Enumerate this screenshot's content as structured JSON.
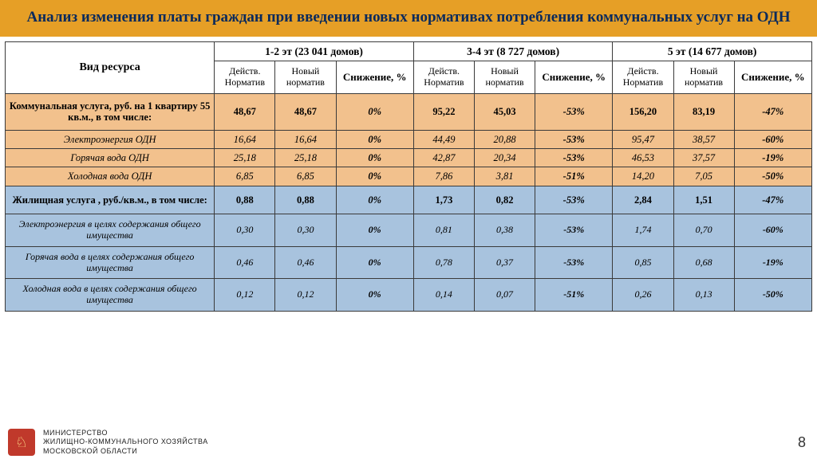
{
  "title": "Анализ изменения платы граждан при введении новых нормативах потребления коммунальных услуг на ОДН",
  "header": {
    "resource": "Вид ресурса",
    "groups": [
      "1-2 эт (23 041 домов)",
      "3-4 эт (8 727 домов)",
      "5 эт (14 677 домов)"
    ],
    "sub_current": "Действ. Норматив",
    "sub_new": "Новый норматив",
    "sub_reduction": "Снижение, %"
  },
  "rows": [
    {
      "cls": "sec-or-h",
      "label": "Коммунальная услуга, руб. на 1 квартиру 55 кв.м., в том числе:",
      "g1": {
        "c": "48,67",
        "n": "48,67",
        "r": "0%"
      },
      "g2": {
        "c": "95,22",
        "n": "45,03",
        "r": "-53%"
      },
      "g3": {
        "c": "156,20",
        "n": "83,19",
        "r": "-47%"
      }
    },
    {
      "cls": "sec-or",
      "label": "Электроэнергия ОДН",
      "g1": {
        "c": "16,64",
        "n": "16,64",
        "r": "0%"
      },
      "g2": {
        "c": "44,49",
        "n": "20,88",
        "r": "-53%"
      },
      "g3": {
        "c": "95,47",
        "n": "38,57",
        "r": "-60%"
      }
    },
    {
      "cls": "sec-or",
      "label": "Горячая вода ОДН",
      "g1": {
        "c": "25,18",
        "n": "25,18",
        "r": "0%"
      },
      "g2": {
        "c": "42,87",
        "n": "20,34",
        "r": "-53%"
      },
      "g3": {
        "c": "46,53",
        "n": "37,57",
        "r": "-19%"
      }
    },
    {
      "cls": "sec-or",
      "label": "Холодная вода ОДН",
      "g1": {
        "c": "6,85",
        "n": "6,85",
        "r": "0%"
      },
      "g2": {
        "c": "7,86",
        "n": "3,81",
        "r": "-51%"
      },
      "g3": {
        "c": "14,20",
        "n": "7,05",
        "r": "-50%"
      }
    },
    {
      "cls": "sec-bl-h",
      "label": "Жилищная услуга , руб./кв.м., в том числе:",
      "g1": {
        "c": "0,88",
        "n": "0,88",
        "r": "0%"
      },
      "g2": {
        "c": "1,73",
        "n": "0,82",
        "r": "-53%"
      },
      "g3": {
        "c": "2,84",
        "n": "1,51",
        "r": "-47%"
      }
    },
    {
      "cls": "sec-bl",
      "label": "Электроэнергия в целях содержания общего имущества",
      "g1": {
        "c": "0,30",
        "n": "0,30",
        "r": "0%"
      },
      "g2": {
        "c": "0,81",
        "n": "0,38",
        "r": "-53%"
      },
      "g3": {
        "c": "1,74",
        "n": "0,70",
        "r": "-60%"
      }
    },
    {
      "cls": "sec-bl",
      "label": "Горячая вода в целях содержания общего имущества",
      "g1": {
        "c": "0,46",
        "n": "0,46",
        "r": "0%"
      },
      "g2": {
        "c": "0,78",
        "n": "0,37",
        "r": "-53%"
      },
      "g3": {
        "c": "0,85",
        "n": "0,68",
        "r": "-19%"
      }
    },
    {
      "cls": "sec-bl",
      "label": "Холодная вода в целях содержания общего имущества",
      "g1": {
        "c": "0,12",
        "n": "0,12",
        "r": "0%"
      },
      "g2": {
        "c": "0,14",
        "n": "0,07",
        "r": "-51%"
      },
      "g3": {
        "c": "0,26",
        "n": "0,13",
        "r": "-50%"
      }
    }
  ],
  "footer": {
    "ministry_l1": "МИНИСТЕРСТВО",
    "ministry_l2": "ЖИЛИЩНО-КОММУНАЛЬНОГО ХОЗЯЙСТВА",
    "ministry_l3": "МОСКОВСКОЙ ОБЛАСТИ",
    "page": "8"
  },
  "colors": {
    "title_band_bg": "#e69f26",
    "title_text": "#0a2a5c",
    "section_orange": "#f2c18d",
    "section_blue": "#a8c3de",
    "border": "#3a3a3a"
  }
}
